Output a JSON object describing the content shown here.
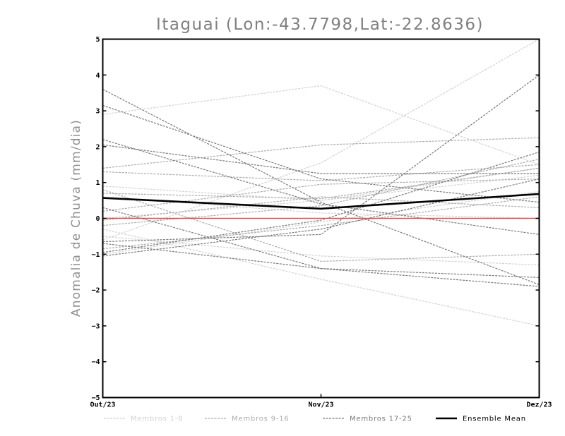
{
  "chart_data": {
    "type": "line",
    "title": "Itaguai (Lon:-43.7798,Lat:-22.8636)",
    "ylabel": "Anomalia de Chuva (mm/dia)",
    "xlabel": "",
    "categories": [
      "Out/23",
      "Nov/23",
      "Dez/23"
    ],
    "ylim": [
      -5,
      5
    ],
    "yticks": [
      "5",
      "4",
      "3",
      "2",
      "1",
      "0",
      "-1",
      "-2",
      "-3",
      "-4",
      "-5"
    ],
    "zero_line_color": "#e05050",
    "grid": false,
    "legend_position": "bottom",
    "legend": [
      {
        "label": "Membros 1-8",
        "color": "#d2d2d2",
        "style": "dashed"
      },
      {
        "label": "Membros 9-16",
        "color": "#acacac",
        "style": "dashed"
      },
      {
        "label": "Membros 17-25",
        "color": "#7a7a7a",
        "style": "dashed"
      },
      {
        "label": "Ensemble Mean",
        "color": "#000000",
        "style": "solid"
      }
    ],
    "series": [
      {
        "group": 0,
        "values": [
          2.9,
          3.7,
          1.5
        ]
      },
      {
        "group": 0,
        "values": [
          -0.6,
          1.55,
          5.0
        ]
      },
      {
        "group": 0,
        "values": [
          0.0,
          0.5,
          1.4
        ]
      },
      {
        "group": 0,
        "values": [
          -0.3,
          -1.7,
          -3.0
        ]
      },
      {
        "group": 0,
        "values": [
          -1.0,
          -0.1,
          0.75
        ]
      },
      {
        "group": 0,
        "values": [
          0.9,
          0.5,
          1.2
        ]
      },
      {
        "group": 0,
        "values": [
          -0.5,
          -1.05,
          -1.3
        ]
      },
      {
        "group": 0,
        "values": [
          0.6,
          0.15,
          0.0
        ]
      },
      {
        "group": 1,
        "values": [
          1.3,
          1.05,
          1.5
        ]
      },
      {
        "group": 1,
        "values": [
          0.7,
          0.55,
          1.4
        ]
      },
      {
        "group": 1,
        "values": [
          -0.2,
          0.35,
          1.65
        ]
      },
      {
        "group": 1,
        "values": [
          0.2,
          0.95,
          1.1
        ]
      },
      {
        "group": 1,
        "values": [
          -0.85,
          -0.2,
          0.6
        ]
      },
      {
        "group": 1,
        "values": [
          0.8,
          -1.2,
          -1.0
        ]
      },
      {
        "group": 1,
        "values": [
          1.4,
          2.05,
          2.25
        ]
      },
      {
        "group": 1,
        "values": [
          -0.05,
          0.6,
          0.3
        ]
      },
      {
        "group": 2,
        "values": [
          3.6,
          0.45,
          -1.85
        ]
      },
      {
        "group": 2,
        "values": [
          3.15,
          1.1,
          0.45
        ]
      },
      {
        "group": 2,
        "values": [
          2.05,
          1.25,
          1.25
        ]
      },
      {
        "group": 2,
        "values": [
          2.2,
          0.4,
          -0.45
        ]
      },
      {
        "group": 2,
        "values": [
          -0.65,
          -0.45,
          4.0
        ]
      },
      {
        "group": 2,
        "values": [
          0.3,
          -1.4,
          -1.9
        ]
      },
      {
        "group": 2,
        "values": [
          -0.95,
          -0.05,
          1.85
        ]
      },
      {
        "group": 2,
        "values": [
          -0.7,
          -1.4,
          -1.65
        ]
      },
      {
        "group": 2,
        "values": [
          -1.05,
          -0.3,
          1.1
        ]
      }
    ],
    "ensemble_mean": [
      0.57,
      0.27,
      0.68
    ]
  }
}
